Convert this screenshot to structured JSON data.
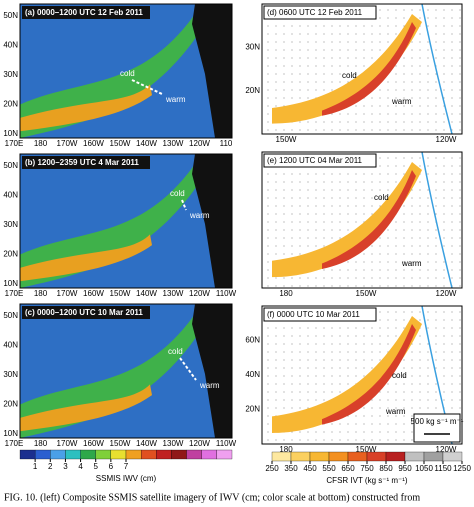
{
  "left_panels": [
    {
      "label": "(a) 0000–1200 UTC 12 Feb 2011",
      "cold": "cold",
      "warm": "warm",
      "lat_labels": [
        "50N",
        "40N",
        "30N",
        "20N",
        "10N"
      ],
      "lon_labels": [
        "170E",
        "180",
        "170W",
        "160W",
        "150W",
        "140W",
        "130W",
        "120W",
        "110"
      ]
    },
    {
      "label": "(b) 1200–2359 UTC 4 Mar 2011",
      "cold": "cold",
      "warm": "warm",
      "lat_labels": [
        "50N",
        "40N",
        "30N",
        "20N",
        "10N"
      ],
      "lon_labels": [
        "170E",
        "180",
        "170W",
        "160W",
        "150W",
        "140W",
        "130W",
        "120W",
        "110W"
      ]
    },
    {
      "label": "(c) 0000–1200 UTC 10 Mar 2011",
      "cold": "cold",
      "warm": "warm",
      "lat_labels": [
        "50N",
        "40N",
        "30N",
        "20N",
        "10N"
      ],
      "lon_labels": [
        "170E",
        "180",
        "170W",
        "160W",
        "150W",
        "140W",
        "130W",
        "120W",
        "110W"
      ]
    }
  ],
  "right_panels": [
    {
      "label": "(d) 0600 UTC  12 Feb 2011",
      "cold": "cold",
      "warm": "warm",
      "lat_labels": [
        "30N",
        "20N"
      ],
      "lon_labels": [
        "150W",
        "120W"
      ]
    },
    {
      "label": "(e) 1200 UTC  04 Mar 2011",
      "cold": "cold",
      "warm": "warm",
      "lat_labels": [],
      "lon_labels": [
        "180",
        "150W",
        "120W"
      ]
    },
    {
      "label": "(f) 0000 UTC  10 Mar 2011",
      "cold": "cold",
      "warm": "warm",
      "lat_labels": [
        "60N",
        "40N",
        "20N"
      ],
      "lon_labels": [
        "180",
        "150W",
        "120W"
      ],
      "vector_legend": "500 kg s⁻¹ m⁻¹"
    }
  ],
  "left_colorbar": {
    "title": "SSMIS IWV (cm)",
    "ticks": [
      1,
      2,
      3,
      4,
      5,
      6,
      7
    ]
  },
  "right_colorbar": {
    "title": "CFSR IVT (kg s⁻¹ m⁻¹)",
    "ticks": [
      250,
      350,
      450,
      550,
      650,
      750,
      850,
      950,
      1050,
      1150,
      1250
    ]
  },
  "caption": "FIG. 10. (left) Composite SSMIS satellite imagery of IWV (cm; color scale at bottom) constructed from"
}
